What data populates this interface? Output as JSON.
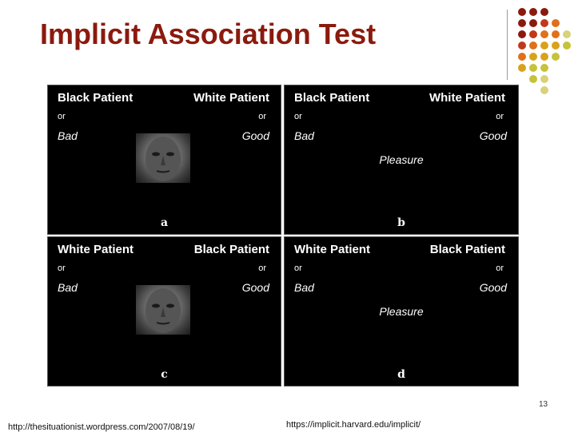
{
  "slide": {
    "title": "Implicit Association Test",
    "page_number": "13",
    "source_left": "http://thesituationist.wordpress.com/2007/08/19/",
    "source_right": "https://implicit.harvard.edu/implicit/"
  },
  "panels": [
    {
      "left_header": "Black Patient",
      "right_header": "White Patient",
      "or": "or",
      "left_word": "Bad",
      "right_word": "Good",
      "stimulus_type": "face",
      "stimulus_text": "",
      "label": "a"
    },
    {
      "left_header": "Black Patient",
      "right_header": "White Patient",
      "or": "or",
      "left_word": "Bad",
      "right_word": "Good",
      "stimulus_type": "word",
      "stimulus_text": "Pleasure",
      "label": "b"
    },
    {
      "left_header": "White Patient",
      "right_header": "Black Patient",
      "or": "or",
      "left_word": "Bad",
      "right_word": "Good",
      "stimulus_type": "face",
      "stimulus_text": "",
      "label": "c"
    },
    {
      "left_header": "White Patient",
      "right_header": "Black Patient",
      "or": "or",
      "left_word": "Bad",
      "right_word": "Good",
      "stimulus_type": "word",
      "stimulus_text": "Pleasure",
      "label": "d"
    }
  ],
  "colors": {
    "title": "#8b1a0e",
    "dot_palette": [
      "#8b1a0e",
      "#c0391b",
      "#e0701a",
      "#d9a21b",
      "#c6c23a",
      "#d8d27a"
    ]
  }
}
